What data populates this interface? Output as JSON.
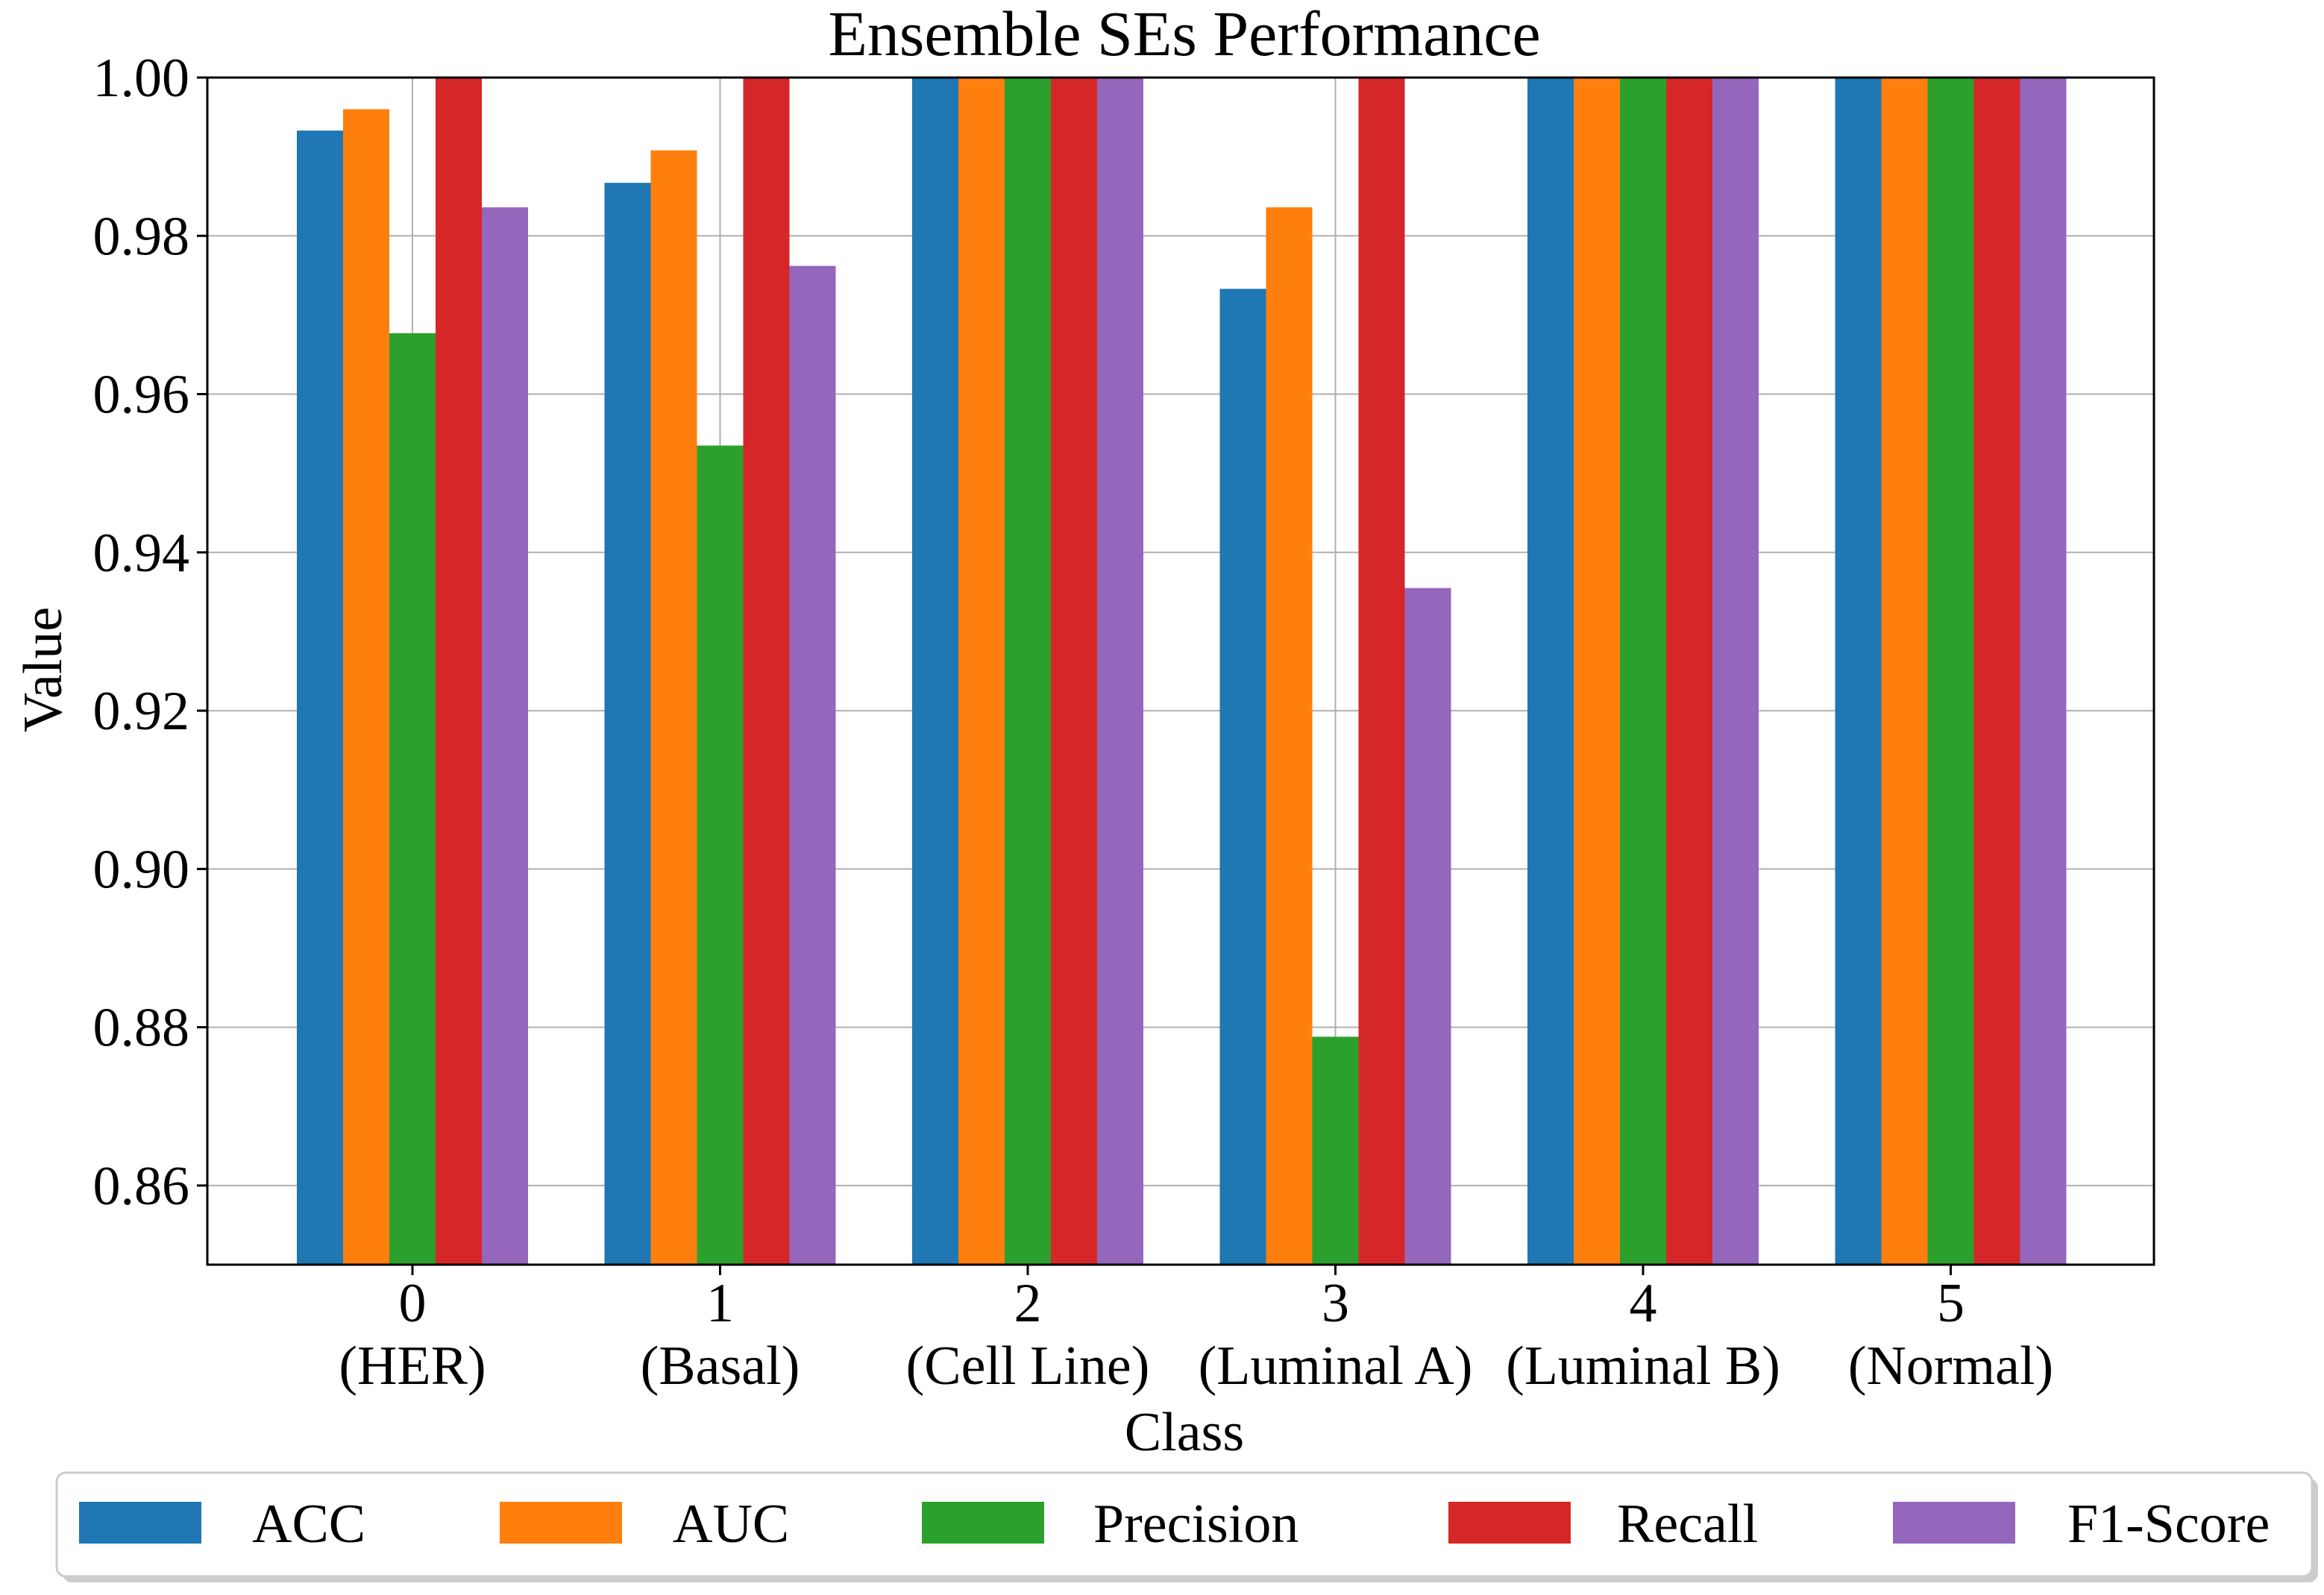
{
  "chart_data": {
    "type": "bar",
    "title": "Ensemble SEs Performance",
    "xlabel": "Class",
    "ylabel": "Value",
    "ylim": [
      0.85,
      1.0
    ],
    "yticks": [
      "0.86",
      "0.88",
      "0.90",
      "0.92",
      "0.94",
      "0.96",
      "0.98",
      "1.00"
    ],
    "ytick_values": [
      0.86,
      0.88,
      0.9,
      0.92,
      0.94,
      0.96,
      0.98,
      1.0
    ],
    "grid": true,
    "legend_position": "bottom",
    "categories": [
      {
        "id": "0",
        "name": "(HER)"
      },
      {
        "id": "1",
        "name": "(Basal)"
      },
      {
        "id": "2",
        "name": "(Cell Line)"
      },
      {
        "id": "3",
        "name": "(Luminal A)"
      },
      {
        "id": "4",
        "name": "(Luminal B)"
      },
      {
        "id": "5",
        "name": "(Normal)"
      }
    ],
    "series": [
      {
        "name": "ACC",
        "color": "#1f77b4",
        "values": [
          0.9933,
          0.9867,
          1.0,
          0.9733,
          1.0,
          1.0
        ]
      },
      {
        "name": "AUC",
        "color": "#ff7f0e",
        "values": [
          0.996,
          0.9908,
          1.0,
          0.9836,
          1.0,
          1.0
        ]
      },
      {
        "name": "Precision",
        "color": "#2ca02c",
        "values": [
          0.9677,
          0.9535,
          1.0,
          0.8788,
          1.0,
          1.0
        ]
      },
      {
        "name": "Recall",
        "color": "#d62728",
        "values": [
          1.0,
          1.0,
          1.0,
          1.0,
          1.0,
          1.0
        ]
      },
      {
        "name": "F1-Score",
        "color": "#9467bd",
        "values": [
          0.9836,
          0.9762,
          1.0,
          0.9355,
          1.0,
          1.0
        ]
      }
    ]
  }
}
